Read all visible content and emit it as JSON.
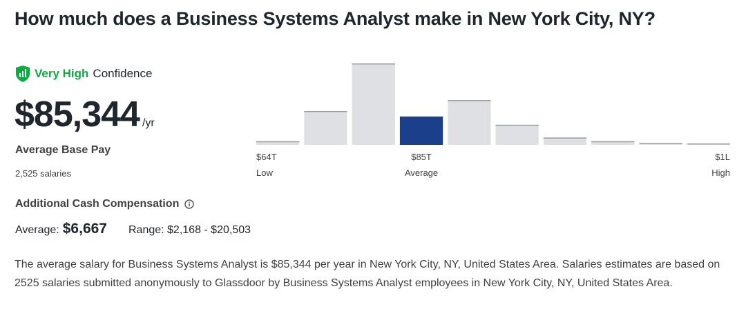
{
  "page": {
    "title": "How much does a Business Systems Analyst make in New York City, NY?"
  },
  "confidence": {
    "level": "Very High",
    "suffix": "Confidence",
    "icon": "shield-bar-chart-icon",
    "color": "#0caa41"
  },
  "pay": {
    "amount": "$85,344",
    "unit": "/yr",
    "label": "Average Base Pay",
    "salaries": "2,525 salaries"
  },
  "additional_comp": {
    "label": "Additional Cash Compensation",
    "info_icon": "info-icon",
    "average_label": "Average:",
    "average_value": "$6,667",
    "range": "Range: $2,168 - $20,503"
  },
  "description": "The average salary for Business Systems Analyst is $85,344 per year in New York City, NY, United States Area. Salaries estimates are based on 2525 salaries submitted anonymously to Glassdoor by Business Systems Analyst employees in New York City, NY, United States Area.",
  "chart_data": {
    "type": "bar",
    "title": "",
    "bins": 10,
    "values": [
      4,
      37,
      89,
      31,
      49,
      22,
      8,
      4,
      2,
      1
    ],
    "highlight_index": 3,
    "bar_color": "#dfe0e3",
    "bar_edge_color": "#9a9ca1",
    "highlight_color": "#1b3f8a",
    "tick_labels": [
      {
        "value": "$64T",
        "sub": "Low",
        "bin": 0,
        "align": "start"
      },
      {
        "value": "$85T",
        "sub": "Average",
        "bin": 3,
        "align": "middle"
      },
      {
        "value": "$1L",
        "sub": "High",
        "bin": 9,
        "align": "end"
      }
    ]
  }
}
